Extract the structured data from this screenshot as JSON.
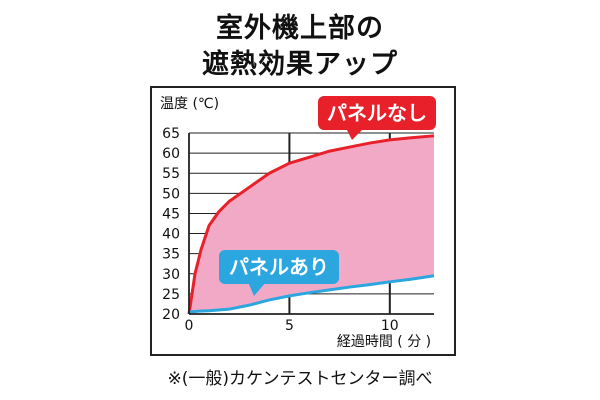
{
  "title_line1": "室外機上部の",
  "title_line2": "遮熱効果アップ",
  "footnote": "※(一般)カケンテストセンター調べ",
  "colors": {
    "panel_off": "#e8202a",
    "panel_on": "#2ba6de",
    "fill": "#f2a9c6",
    "grid": "#222222"
  },
  "chart_data": {
    "type": "line",
    "ylabel": "温度 (℃)",
    "xlabel": "経過時間 ( 分 )",
    "xlim": [
      0,
      12.2
    ],
    "ylim": [
      20,
      65
    ],
    "xticks": [
      0,
      5,
      10
    ],
    "yticks": [
      20,
      25,
      30,
      35,
      40,
      45,
      50,
      55,
      60,
      65
    ],
    "fill_between": true,
    "series": [
      {
        "name": "パネルなし",
        "color": "#e8202a",
        "x": [
          0,
          0.3,
          0.6,
          1,
          1.5,
          2,
          3,
          4,
          5,
          6,
          7,
          8,
          9,
          10,
          11,
          12.2
        ],
        "y": [
          20,
          30,
          36,
          42,
          45.5,
          48,
          51.5,
          55,
          57.5,
          59,
          60.5,
          61.5,
          62.5,
          63.3,
          63.8,
          64.3
        ]
      },
      {
        "name": "パネルあり",
        "color": "#2ba6de",
        "x": [
          0,
          0.5,
          1,
          2,
          3,
          4,
          5,
          6,
          7,
          8,
          9,
          10,
          11,
          12.2
        ],
        "y": [
          20.5,
          20.7,
          20.8,
          21.2,
          22.2,
          23.5,
          24.5,
          25.3,
          26,
          26.7,
          27.3,
          28,
          28.6,
          29.5
        ]
      }
    ]
  }
}
